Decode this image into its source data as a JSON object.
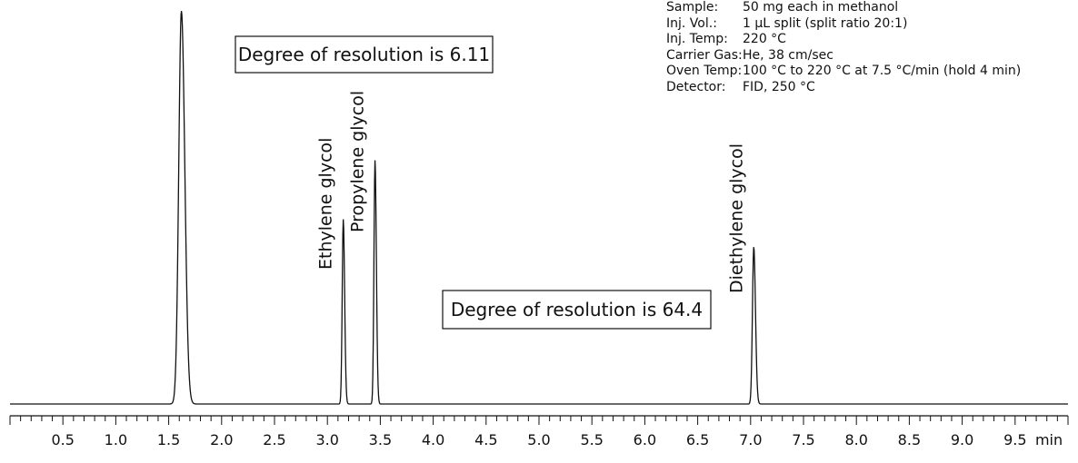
{
  "chart_data": {
    "type": "line",
    "title": "",
    "xlabel": "",
    "ylabel": "",
    "x_unit": "min",
    "xlim": [
      0.0,
      10.0
    ],
    "ylim": [
      0,
      100
    ],
    "x_ticks": [
      0.5,
      1.0,
      1.5,
      2.0,
      2.5,
      3.0,
      3.5,
      4.0,
      4.5,
      5.0,
      5.5,
      6.0,
      6.5,
      7.0,
      7.5,
      8.0,
      8.5,
      9.0,
      9.5
    ],
    "x_tick_labels": [
      "0.5",
      "1.0",
      "1.5",
      "2.0",
      "2.5",
      "3.0",
      "3.5",
      "4.0",
      "4.5",
      "5.0",
      "5.5",
      "6.0",
      "6.5",
      "7.0",
      "7.5",
      "8.0",
      "8.5",
      "9.0",
      "9.5"
    ],
    "peaks": [
      {
        "name": "",
        "retention_time": 1.62,
        "height": 100,
        "width": 0.05
      },
      {
        "name": "Ethylene glycol",
        "retention_time": 3.15,
        "height": 47,
        "width": 0.02
      },
      {
        "name": "Propylene glycol",
        "retention_time": 3.45,
        "height": 62,
        "width": 0.02
      },
      {
        "name": "Diethylene glycol",
        "retention_time": 7.03,
        "height": 40,
        "width": 0.025
      }
    ],
    "annotations": [
      {
        "text": "Degree of resolution is 6.11"
      },
      {
        "text": "Degree of resolution is 64.4"
      }
    ],
    "grid": false,
    "legend": "none"
  },
  "conditions": [
    {
      "key": "Sample:",
      "value": "50 mg each in methanol"
    },
    {
      "key": "Inj. Vol.:",
      "value": "1 µL split (split ratio 20:1)"
    },
    {
      "key": "Inj. Temp:",
      "value": "220 °C"
    },
    {
      "key": "Carrier Gas:",
      "value": "He, 38 cm/sec"
    },
    {
      "key": "Oven Temp:",
      "value": "100 °C to 220 °C at 7.5 °C/min (hold 4 min)"
    },
    {
      "key": "Detector:",
      "value": "FID, 250 °C"
    }
  ]
}
